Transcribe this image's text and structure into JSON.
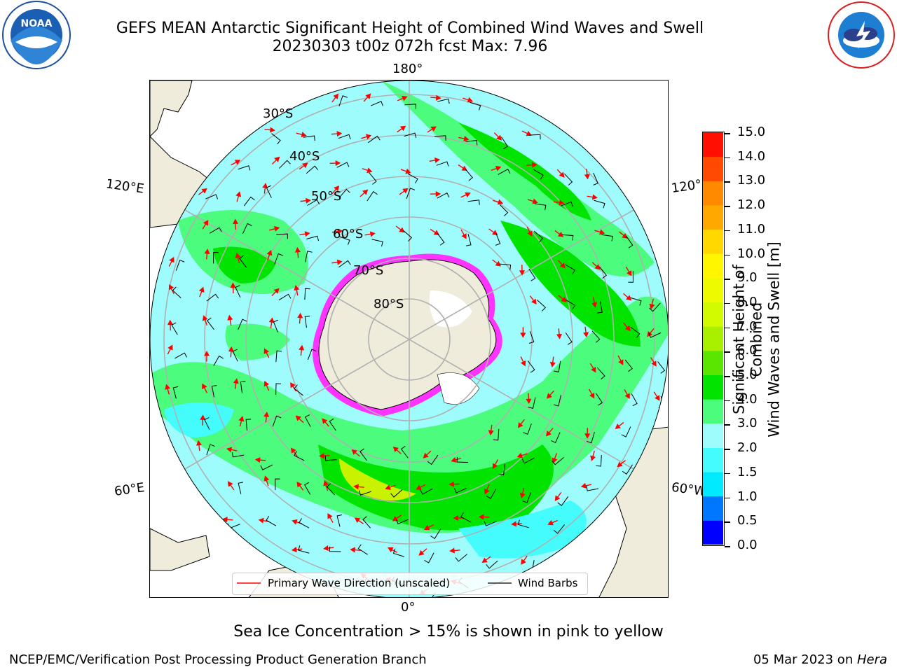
{
  "header": {
    "title_line1": "GEFS MEAN Antarctic Significant Height of Combined Wind Waves and Swell",
    "title_line2": "20230303 t00z 072h fcst   Max: 7.96"
  },
  "logos": {
    "left": {
      "icon": "noaa-logo-icon",
      "text": "NOAA",
      "ring_text": "NATIONAL OCEANIC AND ATMOSPHERIC ADMINISTRATION · U.S. DEPARTMENT OF COMMERCE"
    },
    "right": {
      "icon": "nws-logo-icon",
      "ring_text": "NATIONAL WEATHER SERVICE"
    }
  },
  "map": {
    "longitude_labels": {
      "top": "180°",
      "bottom": "0°",
      "upper_left": "120°E",
      "lower_left": "60°E",
      "upper_right": "120°",
      "lower_right": "60°W"
    },
    "latitude_labels": [
      "30°S",
      "40°S",
      "50°S",
      "60°S",
      "70°S",
      "80°S"
    ],
    "colors": {
      "land": "#efecdc",
      "ocean_low": "#9ffcfc",
      "ocean_mid": "#4cfc7c",
      "ocean_high": "#00e400",
      "ice": "#ff33ff",
      "grid": "#b0b0b0",
      "arrow": "#ff0000"
    }
  },
  "legend": {
    "primary_wave": "Primary Wave Direction (unscaled)",
    "wind_barbs": "Wind Barbs"
  },
  "colorbar": {
    "label_line1": "Significant Height of Combined",
    "label_line2": "Wind Waves and Swell [m]",
    "ticks": [
      "0.0",
      "0.5",
      "1.0",
      "1.5",
      "2.0",
      "3.0",
      "4.0",
      "5.0",
      "6.0",
      "7.0",
      "8.0",
      "9.0",
      "10.0",
      "11.0",
      "12.0",
      "13.0",
      "14.0",
      "15.0"
    ],
    "colors": [
      "#0000ff",
      "#0077ff",
      "#00eaff",
      "#44fcfc",
      "#9ffcfc",
      "#4cfc7c",
      "#00e400",
      "#5ae600",
      "#a8f000",
      "#d2fa00",
      "#eefa00",
      "#fff600",
      "#ffd800",
      "#ffa800",
      "#ff8a00",
      "#ff4a00",
      "#ff1000"
    ]
  },
  "subtitle": "Sea Ice Concentration > 15% is shown in pink to yellow",
  "footer": {
    "left": "NCEP/EMC/Verification Post Processing Product Generation Branch",
    "right_date": "05 Mar 2023 on ",
    "right_host": "Hera"
  }
}
